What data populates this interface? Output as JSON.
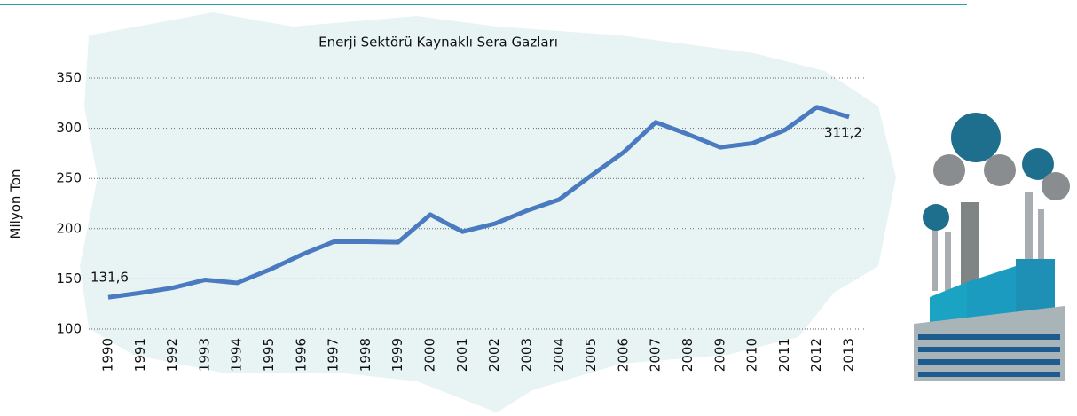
{
  "chart_data": {
    "type": "line",
    "title": "Enerji Sektörü Kaynaklı Sera Gazları",
    "y_label": "Milyon Ton",
    "categories": [
      "1990",
      "1991",
      "1992",
      "1993",
      "1994",
      "1995",
      "1996",
      "1997",
      "1998",
      "1999",
      "2000",
      "2001",
      "2002",
      "2003",
      "2004",
      "2005",
      "2006",
      "2007",
      "2008",
      "2009",
      "2010",
      "2011",
      "2012",
      "2013"
    ],
    "values": [
      131.6,
      136,
      141,
      149,
      146,
      159,
      174,
      187,
      187,
      186.5,
      214,
      197,
      205,
      218,
      229,
      253,
      276,
      306,
      294,
      281,
      285,
      298,
      321,
      311.2
    ],
    "value_labels": [
      "131,6",
      null,
      null,
      null,
      null,
      null,
      null,
      null,
      null,
      null,
      null,
      null,
      null,
      null,
      null,
      null,
      null,
      null,
      null,
      null,
      null,
      null,
      null,
      "311,2"
    ],
    "color": "#4a7abf",
    "ylim": [
      100,
      350
    ],
    "yticks": [
      100,
      150,
      200,
      250,
      300,
      350
    ],
    "grid": true
  }
}
